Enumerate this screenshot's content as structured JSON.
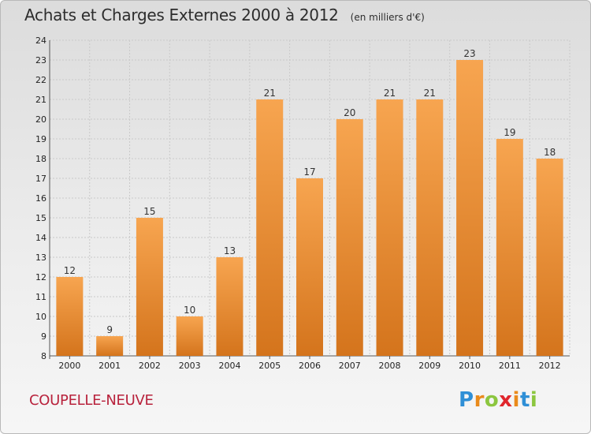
{
  "title": "Achats et Charges Externes 2000 à 2012",
  "unit_note": "(en milliers d'€)",
  "commune": "COUPELLE-NEUVE",
  "logo": {
    "text": "Proxiti",
    "letter_colors": [
      "#2f8fd6",
      "#e98a1b",
      "#8cc63f",
      "#e0262c",
      "#e98a1b",
      "#2f8fd6",
      "#8cc63f"
    ]
  },
  "colors": {
    "bar_light": "#f7a550",
    "bar_dark": "#d4741c",
    "grid": "#c9c9c9",
    "axis_text": "#222222"
  },
  "chart_data": {
    "type": "bar",
    "title": "Achats et Charges Externes 2000 à 2012",
    "subtitle": "(en milliers d'€)",
    "xlabel": "",
    "ylabel": "",
    "categories": [
      "2000",
      "2001",
      "2002",
      "2003",
      "2004",
      "2005",
      "2006",
      "2007",
      "2008",
      "2009",
      "2010",
      "2011",
      "2012"
    ],
    "values": [
      12,
      9,
      15,
      10,
      13,
      21,
      17,
      20,
      21,
      21,
      23,
      19,
      18
    ],
    "ylim": [
      8,
      24
    ],
    "yticks": [
      8,
      9,
      10,
      11,
      12,
      13,
      14,
      15,
      16,
      17,
      18,
      19,
      20,
      21,
      22,
      23,
      24
    ],
    "grid": true,
    "data_labels": true
  }
}
